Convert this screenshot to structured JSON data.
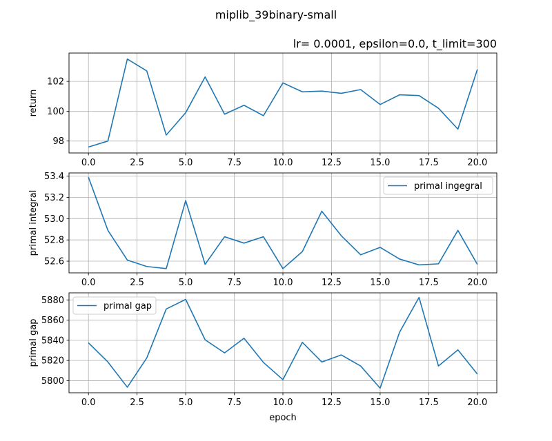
{
  "figure": {
    "suptitle": "miplib_39binary-small",
    "subtitle": "lr= 0.0001, epsilon=0.0, t_limit=300"
  },
  "colors": {
    "series": "#1f77b4",
    "grid": "#b0b0b0",
    "axes": "#000000"
  },
  "chart_data": [
    {
      "type": "line",
      "title": "lr= 0.0001, epsilon=0.0, t_limit=300",
      "xlabel": "",
      "ylabel": "return",
      "x": [
        0,
        1,
        2,
        3,
        4,
        5,
        6,
        7,
        8,
        9,
        10,
        11,
        12,
        13,
        14,
        15,
        16,
        17,
        18,
        19,
        20
      ],
      "series": [
        {
          "name": "return",
          "values": [
            97.6,
            98.0,
            103.5,
            102.7,
            98.4,
            99.9,
            102.3,
            99.8,
            100.4,
            99.7,
            101.9,
            101.3,
            101.35,
            101.2,
            101.45,
            100.45,
            101.1,
            101.05,
            100.2,
            98.8,
            102.8
          ]
        }
      ],
      "xlim": [
        -1,
        21
      ],
      "ylim": [
        97.2,
        103.9
      ],
      "xticks": [
        0,
        2.5,
        5,
        7.5,
        10,
        12.5,
        15,
        17.5,
        20
      ],
      "xticklabels": [
        "0.0",
        "2.5",
        "5.0",
        "7.5",
        "10.0",
        "12.5",
        "15.0",
        "17.5",
        "20.0"
      ],
      "yticks": [
        98,
        100,
        102
      ],
      "yticklabels": [
        "98",
        "100",
        "102"
      ],
      "grid": true,
      "legend": null
    },
    {
      "type": "line",
      "title": "",
      "xlabel": "",
      "ylabel": "primal integral",
      "x": [
        0,
        1,
        2,
        3,
        4,
        5,
        6,
        7,
        8,
        9,
        10,
        11,
        12,
        13,
        14,
        15,
        16,
        17,
        18,
        19,
        20
      ],
      "series": [
        {
          "name": "primal ingegral",
          "values": [
            53.39,
            52.89,
            52.61,
            52.55,
            52.53,
            53.17,
            52.57,
            52.83,
            52.77,
            52.83,
            52.53,
            52.69,
            53.07,
            52.84,
            52.66,
            52.73,
            52.62,
            52.565,
            52.575,
            52.89,
            52.57
          ]
        }
      ],
      "xlim": [
        -1,
        21
      ],
      "ylim": [
        52.49,
        53.43
      ],
      "xticks": [
        0,
        2.5,
        5,
        7.5,
        10,
        12.5,
        15,
        17.5,
        20
      ],
      "xticklabels": [
        "0.0",
        "2.5",
        "5.0",
        "7.5",
        "10.0",
        "12.5",
        "15.0",
        "17.5",
        "20.0"
      ],
      "yticks": [
        52.6,
        52.8,
        53.0,
        53.2,
        53.4
      ],
      "yticklabels": [
        "52.6",
        "52.8",
        "53.0",
        "53.2",
        "53.4"
      ],
      "grid": true,
      "legend": "top-right"
    },
    {
      "type": "line",
      "title": "",
      "xlabel": "epoch",
      "ylabel": "primal gap",
      "x": [
        0,
        1,
        2,
        3,
        4,
        5,
        6,
        7,
        8,
        9,
        10,
        11,
        12,
        13,
        14,
        15,
        16,
        17,
        18,
        19,
        20
      ],
      "series": [
        {
          "name": "primal gap",
          "values": [
            5837.5,
            5818.5,
            5793.5,
            5822.5,
            5871,
            5880.5,
            5840.5,
            5827.5,
            5842,
            5818,
            5801,
            5838,
            5818.5,
            5825.5,
            5814.5,
            5792.5,
            5848,
            5882.5,
            5814.5,
            5830.5,
            5806.5
          ]
        }
      ],
      "xlim": [
        -1,
        21
      ],
      "ylim": [
        5788,
        5887
      ],
      "xticks": [
        0,
        2.5,
        5,
        7.5,
        10,
        12.5,
        15,
        17.5,
        20
      ],
      "xticklabels": [
        "0.0",
        "2.5",
        "5.0",
        "7.5",
        "10.0",
        "12.5",
        "15.0",
        "17.5",
        "20.0"
      ],
      "yticks": [
        5800,
        5820,
        5840,
        5860,
        5880
      ],
      "yticklabels": [
        "5800",
        "5820",
        "5840",
        "5860",
        "5880"
      ],
      "grid": true,
      "legend": "top-left"
    }
  ]
}
